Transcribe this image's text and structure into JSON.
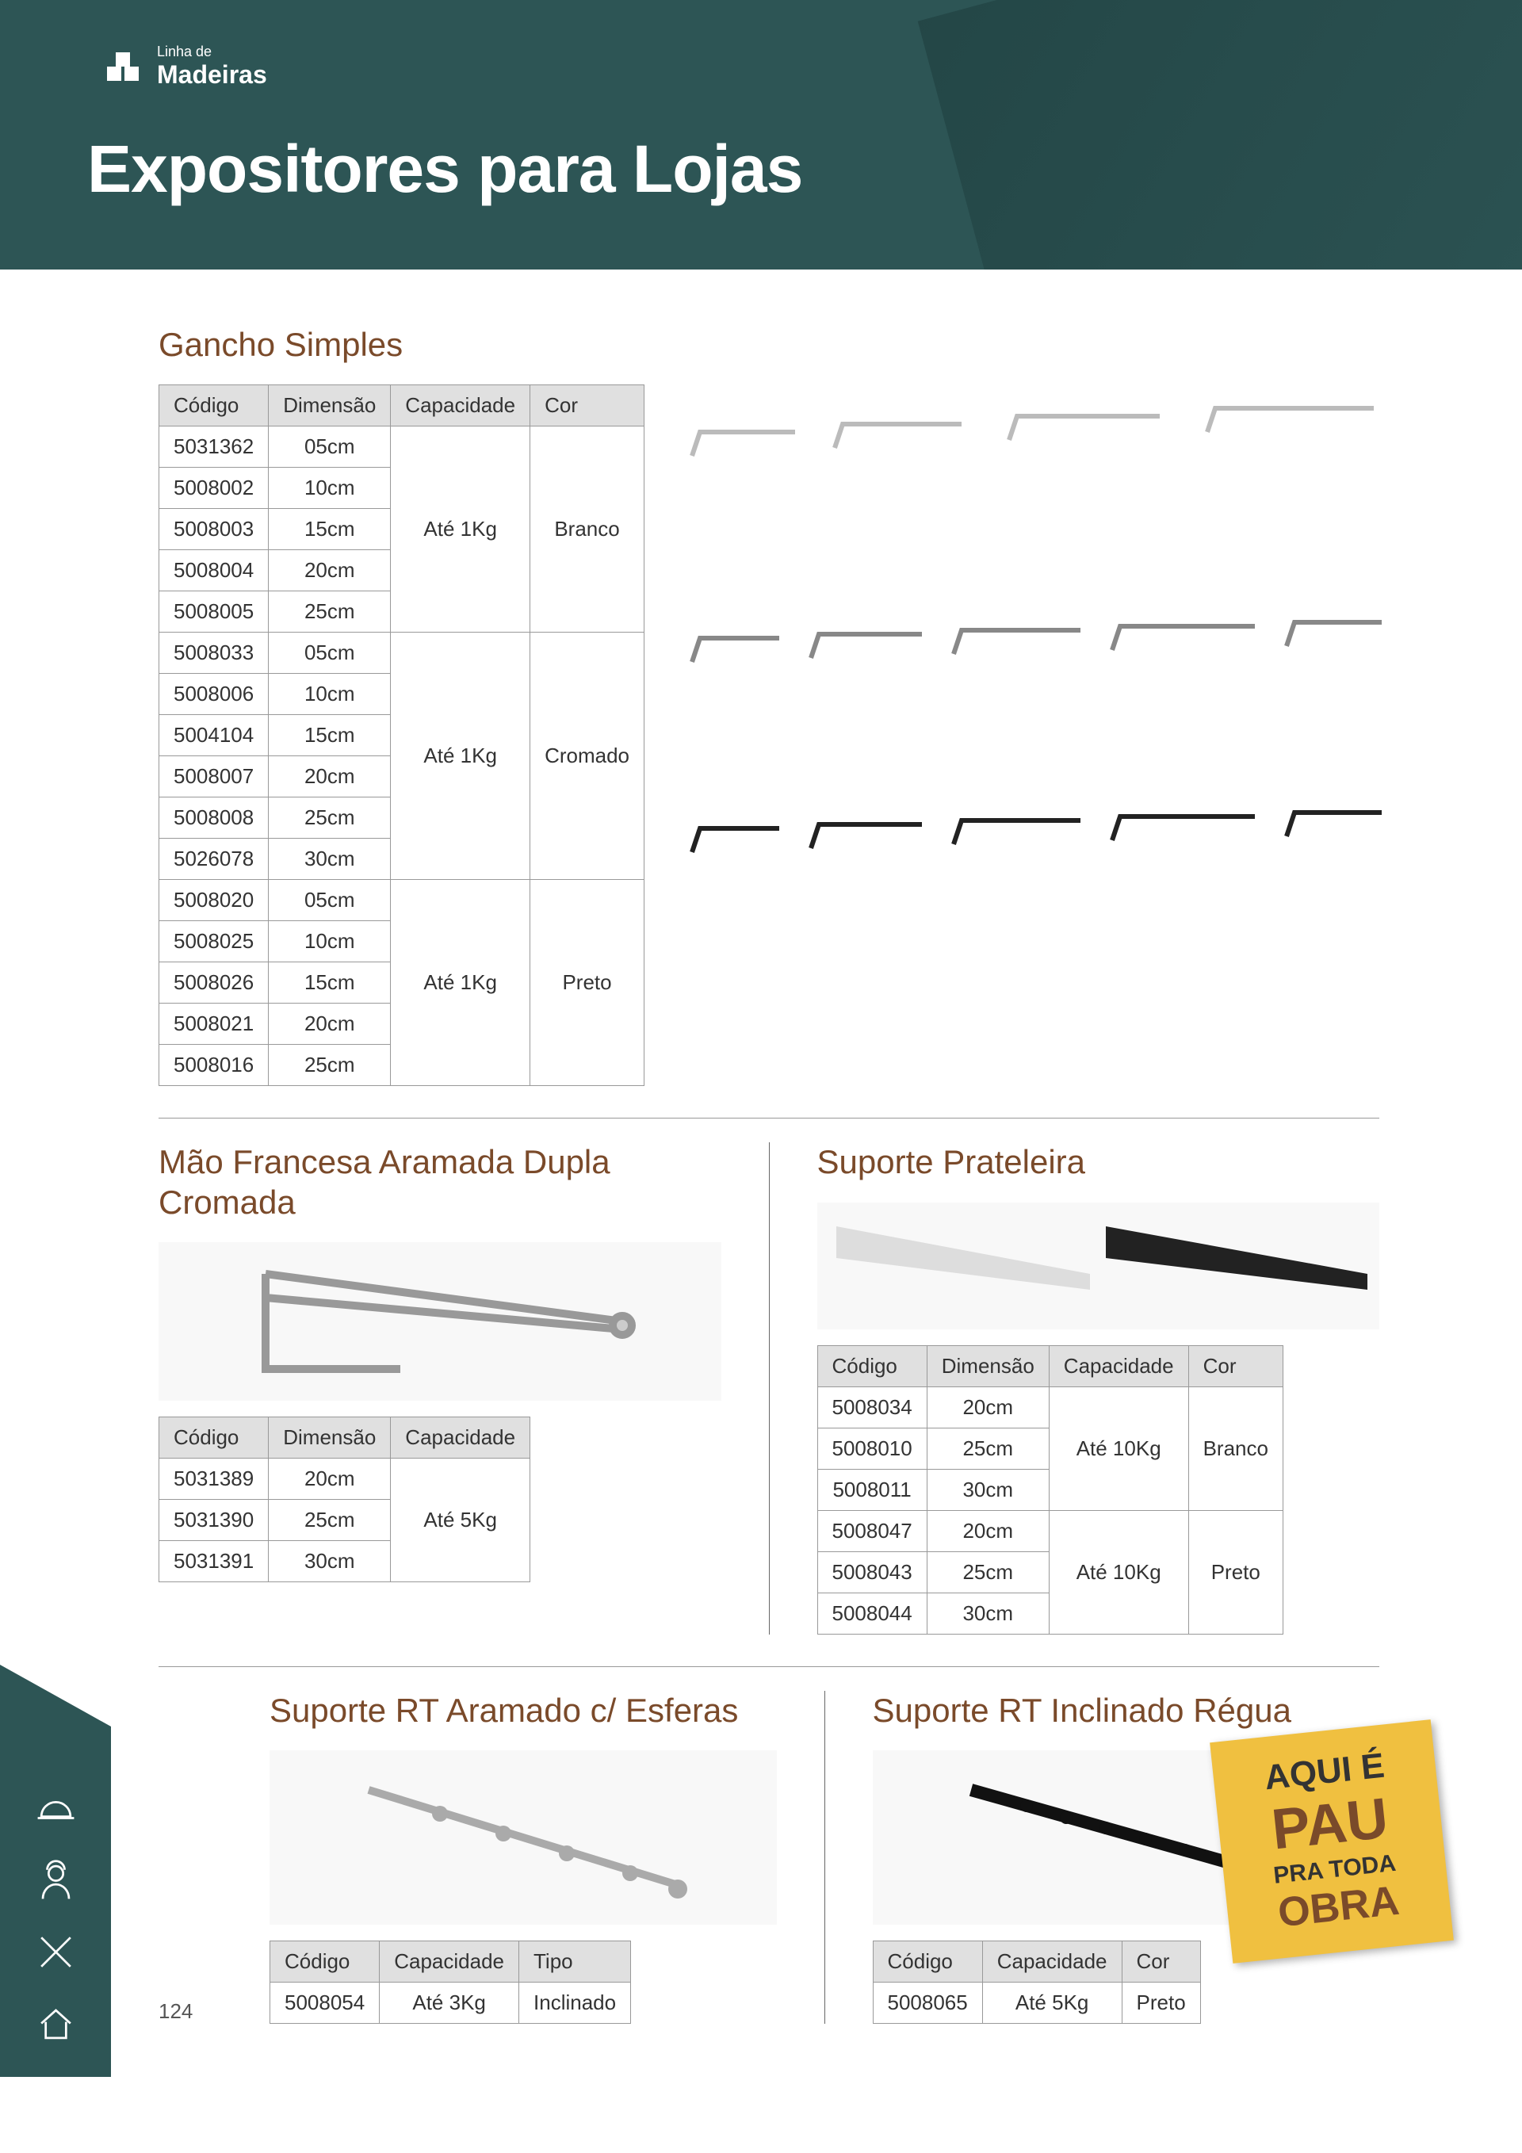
{
  "brand": {
    "tagline": "Linha de",
    "name": "Madeiras"
  },
  "page_title": "Expositores para Lojas",
  "page_number": "124",
  "colors": {
    "header_bg": "#2d5555",
    "title_color": "#7a4a2a",
    "th_bg": "#e0e0e0",
    "border": "#999999",
    "sticker_bg": "#f0c040"
  },
  "sticker": {
    "line1": "AQUI É",
    "line2": "PAU",
    "line3": "PRA TODA",
    "line4": "OBRA"
  },
  "sections": {
    "gancho": {
      "title": "Gancho Simples",
      "columns": [
        "Código",
        "Dimensão",
        "Capacidade",
        "Cor"
      ],
      "groups": [
        {
          "capacidade": "Até 1Kg",
          "cor": "Branco",
          "rows": [
            [
              "5031362",
              "05cm"
            ],
            [
              "5008002",
              "10cm"
            ],
            [
              "5008003",
              "15cm"
            ],
            [
              "5008004",
              "20cm"
            ],
            [
              "5008005",
              "25cm"
            ]
          ]
        },
        {
          "capacidade": "Até 1Kg",
          "cor": "Cromado",
          "rows": [
            [
              "5008033",
              "05cm"
            ],
            [
              "5008006",
              "10cm"
            ],
            [
              "5004104",
              "15cm"
            ],
            [
              "5008007",
              "20cm"
            ],
            [
              "5008008",
              "25cm"
            ],
            [
              "5026078",
              "30cm"
            ]
          ]
        },
        {
          "capacidade": "Até 1Kg",
          "cor": "Preto",
          "rows": [
            [
              "5008020",
              "05cm"
            ],
            [
              "5008025",
              "10cm"
            ],
            [
              "5008026",
              "15cm"
            ],
            [
              "5008021",
              "20cm"
            ],
            [
              "5008016",
              "25cm"
            ]
          ]
        }
      ]
    },
    "mao_francesa": {
      "title": "Mão Francesa Aramada Dupla Cromada",
      "columns": [
        "Código",
        "Dimensão",
        "Capacidade"
      ],
      "capacidade": "Até 5Kg",
      "rows": [
        [
          "5031389",
          "20cm"
        ],
        [
          "5031390",
          "25cm"
        ],
        [
          "5031391",
          "30cm"
        ]
      ]
    },
    "suporte_prateleira": {
      "title": "Suporte Prateleira",
      "columns": [
        "Código",
        "Dimensão",
        "Capacidade",
        "Cor"
      ],
      "groups": [
        {
          "capacidade": "Até 10Kg",
          "cor": "Branco",
          "rows": [
            [
              "5008034",
              "20cm"
            ],
            [
              "5008010",
              "25cm"
            ],
            [
              "5008011",
              "30cm"
            ]
          ]
        },
        {
          "capacidade": "Até 10Kg",
          "cor": "Preto",
          "rows": [
            [
              "5008047",
              "20cm"
            ],
            [
              "5008043",
              "25cm"
            ],
            [
              "5008044",
              "30cm"
            ]
          ]
        }
      ]
    },
    "suporte_rt_aramado": {
      "title": "Suporte RT Aramado c/ Esferas",
      "columns": [
        "Código",
        "Capacidade",
        "Tipo"
      ],
      "rows": [
        [
          "5008054",
          "Até 3Kg",
          "Inclinado"
        ]
      ]
    },
    "suporte_rt_inclinado": {
      "title": "Suporte RT Inclinado Régua",
      "columns": [
        "Código",
        "Capacidade",
        "Cor"
      ],
      "rows": [
        [
          "5008065",
          "Até 5Kg",
          "Preto"
        ]
      ]
    }
  }
}
